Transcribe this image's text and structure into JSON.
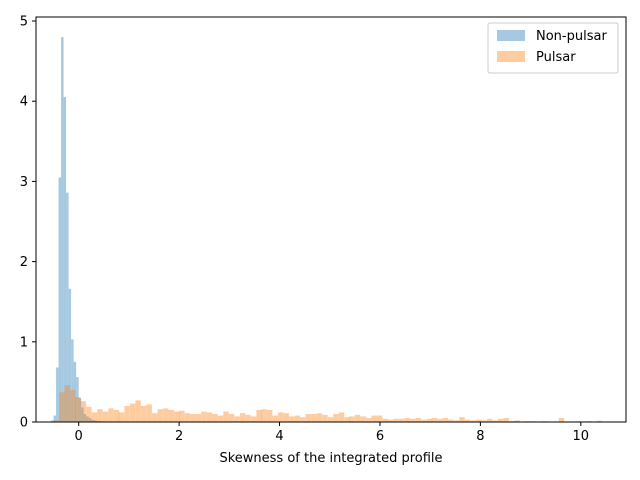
{
  "chart_data": {
    "type": "histogram",
    "title": "",
    "xlabel": "Skewness of the integrated profile",
    "ylabel": "",
    "xlim": [
      -0.85,
      10.9
    ],
    "ylim": [
      0,
      5.05
    ],
    "xticks": [
      0,
      2,
      4,
      6,
      8,
      10
    ],
    "yticks": [
      0,
      1,
      2,
      3,
      4,
      5
    ],
    "grid": false,
    "legend_position": "top-right",
    "series": [
      {
        "name": "Non-pulsar",
        "color": "#1f77b4",
        "opacity": 0.4,
        "bin_width": 0.049,
        "bins": [
          [
            -0.55,
            0.02
          ],
          [
            -0.5,
            0.08
          ],
          [
            -0.45,
            0.68
          ],
          [
            -0.4,
            3.05
          ],
          [
            -0.35,
            4.8
          ],
          [
            -0.3,
            4.05
          ],
          [
            -0.25,
            2.86
          ],
          [
            -0.2,
            1.66
          ],
          [
            -0.15,
            1.03
          ],
          [
            -0.1,
            0.75
          ],
          [
            -0.05,
            0.56
          ],
          [
            0.0,
            0.3
          ],
          [
            0.05,
            0.18
          ],
          [
            0.1,
            0.1
          ],
          [
            0.15,
            0.07
          ],
          [
            0.2,
            0.05
          ],
          [
            0.25,
            0.03
          ],
          [
            0.3,
            0.02
          ],
          [
            0.35,
            0.015
          ],
          [
            0.4,
            0.01
          ],
          [
            0.45,
            0.008
          ],
          [
            0.5,
            0.005
          ]
        ]
      },
      {
        "name": "Pulsar",
        "color": "#ff7f0e",
        "opacity": 0.4,
        "bin_width": 0.108,
        "bins": [
          [
            -0.5,
            0.02
          ],
          [
            -0.39,
            0.37
          ],
          [
            -0.28,
            0.46
          ],
          [
            -0.17,
            0.4
          ],
          [
            -0.07,
            0.31
          ],
          [
            0.04,
            0.26
          ],
          [
            0.15,
            0.19
          ],
          [
            0.26,
            0.12
          ],
          [
            0.37,
            0.16
          ],
          [
            0.48,
            0.13
          ],
          [
            0.59,
            0.17
          ],
          [
            0.7,
            0.15
          ],
          [
            0.8,
            0.12
          ],
          [
            0.91,
            0.2
          ],
          [
            1.02,
            0.23
          ],
          [
            1.13,
            0.27
          ],
          [
            1.24,
            0.2
          ],
          [
            1.35,
            0.22
          ],
          [
            1.46,
            0.11
          ],
          [
            1.57,
            0.16
          ],
          [
            1.68,
            0.17
          ],
          [
            1.79,
            0.15
          ],
          [
            1.9,
            0.13
          ],
          [
            2.0,
            0.14
          ],
          [
            2.11,
            0.11
          ],
          [
            2.22,
            0.1
          ],
          [
            2.33,
            0.1
          ],
          [
            2.44,
            0.13
          ],
          [
            2.55,
            0.12
          ],
          [
            2.66,
            0.1
          ],
          [
            2.77,
            0.08
          ],
          [
            2.88,
            0.13
          ],
          [
            2.99,
            0.1
          ],
          [
            3.1,
            0.07
          ],
          [
            3.21,
            0.11
          ],
          [
            3.32,
            0.09
          ],
          [
            3.43,
            0.07
          ],
          [
            3.54,
            0.15
          ],
          [
            3.64,
            0.16
          ],
          [
            3.75,
            0.15
          ],
          [
            3.86,
            0.08
          ],
          [
            3.97,
            0.12
          ],
          [
            4.08,
            0.11
          ],
          [
            4.19,
            0.07
          ],
          [
            4.3,
            0.08
          ],
          [
            4.41,
            0.06
          ],
          [
            4.52,
            0.1
          ],
          [
            4.63,
            0.1
          ],
          [
            4.74,
            0.11
          ],
          [
            4.85,
            0.09
          ],
          [
            4.96,
            0.06
          ],
          [
            5.07,
            0.1
          ],
          [
            5.18,
            0.12
          ],
          [
            5.29,
            0.06
          ],
          [
            5.39,
            0.07
          ],
          [
            5.5,
            0.09
          ],
          [
            5.61,
            0.07
          ],
          [
            5.72,
            0.05
          ],
          [
            5.83,
            0.08
          ],
          [
            5.94,
            0.08
          ],
          [
            6.05,
            0.04
          ],
          [
            6.16,
            0.03
          ],
          [
            6.27,
            0.04
          ],
          [
            6.38,
            0.04
          ],
          [
            6.49,
            0.05
          ],
          [
            6.6,
            0.04
          ],
          [
            6.71,
            0.05
          ],
          [
            6.82,
            0.03
          ],
          [
            6.93,
            0.04
          ],
          [
            7.03,
            0.05
          ],
          [
            7.14,
            0.04
          ],
          [
            7.25,
            0.05
          ],
          [
            7.36,
            0.03
          ],
          [
            7.47,
            0.02
          ],
          [
            7.58,
            0.06
          ],
          [
            7.69,
            0.03
          ],
          [
            7.8,
            0.02
          ],
          [
            7.91,
            0.03
          ],
          [
            8.02,
            0.02
          ],
          [
            8.13,
            0.04
          ],
          [
            8.24,
            0.02
          ],
          [
            8.35,
            0.04
          ],
          [
            8.46,
            0.05
          ],
          [
            8.57,
            0.01
          ],
          [
            8.68,
            0.02
          ],
          [
            8.89,
            0.01
          ],
          [
            9.0,
            0.01
          ],
          [
            9.22,
            0.01
          ],
          [
            9.56,
            0.05
          ],
          [
            9.89,
            0.01
          ],
          [
            10.11,
            0.01
          ],
          [
            10.32,
            0.015
          ]
        ]
      }
    ]
  }
}
